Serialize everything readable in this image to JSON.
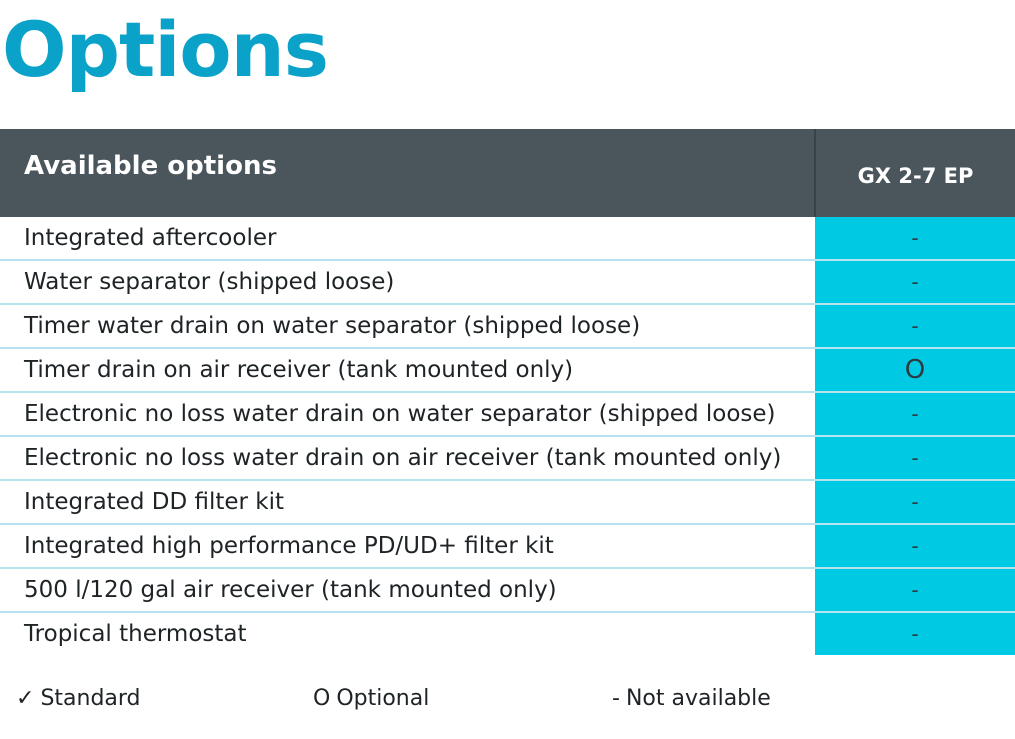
{
  "page": {
    "title": "Options"
  },
  "table": {
    "header": {
      "label": "Available options",
      "model": "GX 2-7 EP"
    },
    "rows": [
      {
        "label": "Integrated aftercooler",
        "value": "-"
      },
      {
        "label": "Water separator (shipped loose)",
        "value": "-"
      },
      {
        "label": "Timer water drain on water separator (shipped loose)",
        "value": "-"
      },
      {
        "label": "Timer drain on air receiver (tank mounted only)",
        "value": "O"
      },
      {
        "label": "Electronic no loss water drain on water separator (shipped loose)",
        "value": "-"
      },
      {
        "label": "Electronic no loss water drain on air receiver (tank mounted only)",
        "value": "-"
      },
      {
        "label": "Integrated DD filter kit",
        "value": "-"
      },
      {
        "label": "Integrated high performance PD/UD+ filter kit",
        "value": "-"
      },
      {
        "label": "500 l/120 gal air receiver (tank mounted only)",
        "value": "-"
      },
      {
        "label": "Tropical thermostat",
        "value": "-"
      }
    ]
  },
  "legend": {
    "standard": {
      "symbol": "✓",
      "label": "Standard"
    },
    "optional": {
      "symbol": "O",
      "label": "Optional"
    },
    "not_available": {
      "symbol": "-",
      "label": "Not available"
    }
  },
  "colors": {
    "title": "#0aa2c9",
    "header_bg": "#4a555c",
    "value_cell_bg": "#00c9e3",
    "row_divider": "#b7e3ef"
  }
}
